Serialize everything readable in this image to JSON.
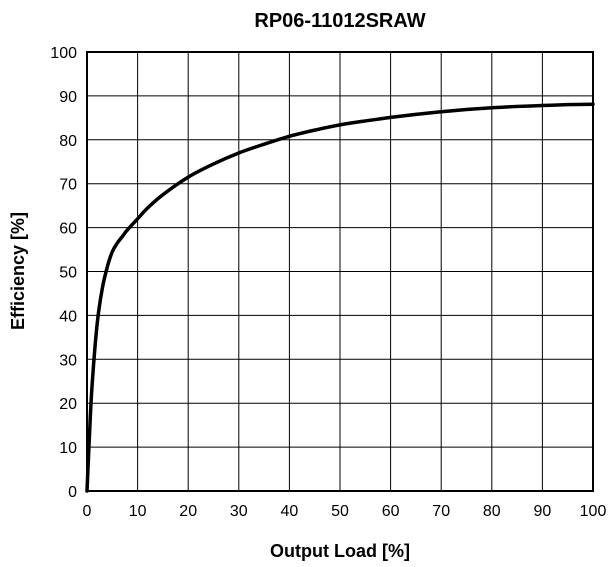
{
  "chart_data": {
    "type": "line",
    "title": "RP06-11012SRAW",
    "xlabel": "Output Load [%]",
    "ylabel": "Efficiency [%]",
    "xlim": [
      0,
      100
    ],
    "ylim": [
      0,
      100
    ],
    "x_ticks": [
      "0",
      "10",
      "20",
      "30",
      "40",
      "50",
      "60",
      "70",
      "80",
      "90",
      "100"
    ],
    "y_ticks": [
      "0",
      "10",
      "20",
      "30",
      "40",
      "50",
      "60",
      "70",
      "80",
      "90",
      "100"
    ],
    "grid": true,
    "series": [
      {
        "color": "#000000",
        "x": [
          0,
          0.5,
          1,
          2,
          3,
          4,
          5,
          6,
          7,
          8,
          10,
          12,
          15,
          20,
          25,
          30,
          35,
          40,
          45,
          50,
          55,
          60,
          65,
          70,
          75,
          80,
          85,
          90,
          95,
          100
        ],
        "y": [
          0,
          13,
          24,
          38,
          46,
          51,
          54.5,
          56.5,
          58,
          59.5,
          62,
          64.5,
          67.5,
          71.5,
          74.5,
          77,
          79,
          80.8,
          82.2,
          83.4,
          84.3,
          85.1,
          85.8,
          86.4,
          86.9,
          87.3,
          87.6,
          87.8,
          88,
          88.1
        ]
      }
    ]
  }
}
